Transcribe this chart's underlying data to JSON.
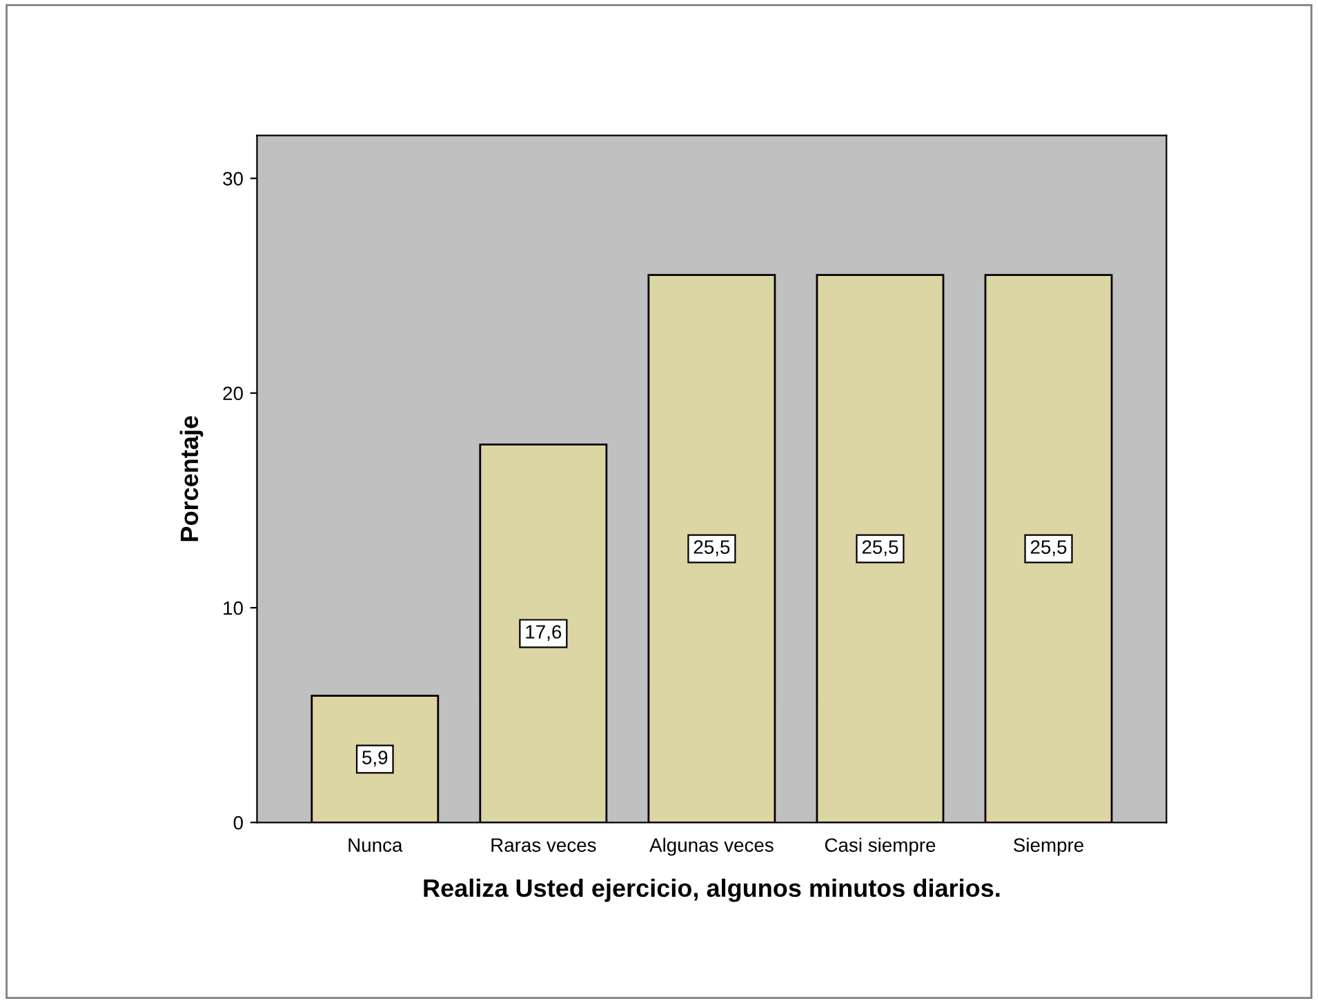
{
  "chart_data": {
    "type": "bar",
    "xlabel": "Realiza Usted ejercicio, algunos minutos diarios.",
    "ylabel": "Porcentaje",
    "categories": [
      "Nunca",
      "Raras veces",
      "Algunas veces",
      "Casi siempre",
      "Siempre"
    ],
    "values": [
      5.9,
      17.6,
      25.5,
      25.5,
      25.5
    ],
    "value_labels": [
      "5,9",
      "17,6",
      "25,5",
      "25,5",
      "25,5"
    ],
    "color": "#dcd6a4",
    "ylim": [
      0,
      32
    ],
    "yticks": [
      0,
      10,
      20,
      30
    ],
    "grid": false,
    "legend": false
  }
}
